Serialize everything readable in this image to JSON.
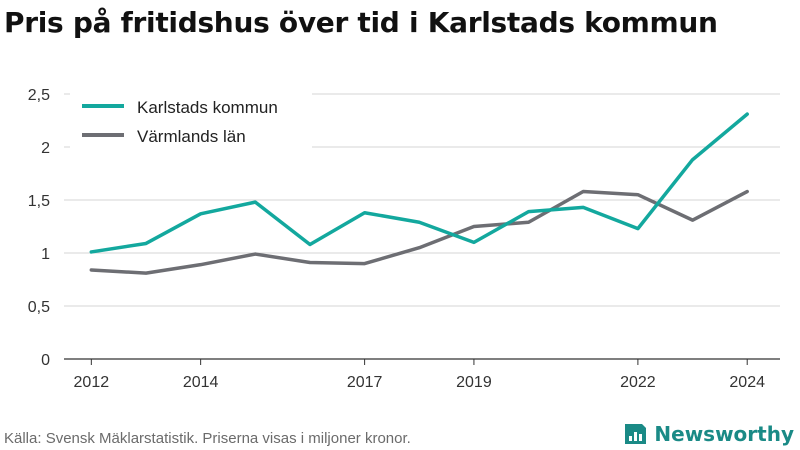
{
  "title": "Pris på fritidshus över tid i Karlstads kommun",
  "footer": {
    "source": "Källa: Svensk Mäklarstatistik. Priserna visas i miljoner kronor.",
    "brand": "Newsworthy"
  },
  "colors": {
    "karlstad": "#13a89e",
    "varmland": "#6d6e73",
    "grid": "#d6d6d6",
    "axis": "#333333",
    "brand": "#1a8a86"
  },
  "chart_data": {
    "type": "line",
    "x": [
      2012,
      2013,
      2014,
      2015,
      2016,
      2017,
      2018,
      2019,
      2020,
      2021,
      2022,
      2023,
      2024
    ],
    "xtick_labels": [
      "2012",
      "2014",
      "2017",
      "2019",
      "2022",
      "2024"
    ],
    "xtick_values": [
      2012,
      2014,
      2017,
      2019,
      2022,
      2024
    ],
    "ytick_labels": [
      "0",
      "0,5",
      "1",
      "1,5",
      "2",
      "2,5"
    ],
    "ytick_values": [
      0,
      0.5,
      1,
      1.5,
      2,
      2.5
    ],
    "ylim": [
      0,
      2.5
    ],
    "xlim": [
      2011.5,
      2024.6
    ],
    "grid": "horizontal",
    "legend_position": "top-left",
    "series": [
      {
        "name": "Karlstads kommun",
        "color": "#13a89e",
        "values": [
          1.01,
          1.09,
          1.37,
          1.48,
          1.08,
          1.38,
          1.29,
          1.1,
          1.39,
          1.43,
          1.23,
          1.88,
          2.31
        ]
      },
      {
        "name": "Värmlands län",
        "color": "#6d6e73",
        "values": [
          0.84,
          0.81,
          0.89,
          0.99,
          0.91,
          0.9,
          1.05,
          1.25,
          1.29,
          1.58,
          1.55,
          1.31,
          1.58
        ]
      }
    ]
  }
}
